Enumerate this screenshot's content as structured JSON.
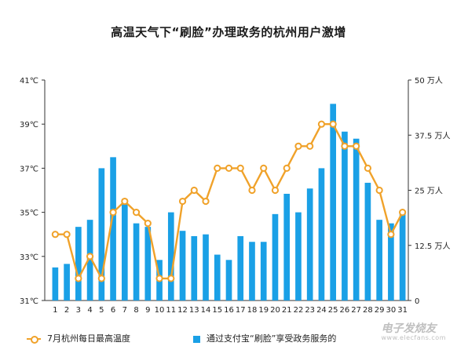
{
  "chart_data": {
    "type": "bar+line",
    "title": "高温天气下“刷脸”办理政务的杭州用户激增",
    "categories": [
      "1",
      "2",
      "3",
      "4",
      "5",
      "6",
      "7",
      "8",
      "9",
      "10",
      "11",
      "12",
      "13",
      "14",
      "15",
      "16",
      "17",
      "18",
      "19",
      "20",
      "21",
      "22",
      "23",
      "24",
      "25",
      "26",
      "27",
      "28",
      "29",
      "30",
      "31"
    ],
    "left_axis": {
      "ticks": [
        31,
        33,
        35,
        37,
        39,
        41
      ],
      "tick_labels": [
        "31℃",
        "33℃",
        "35℃",
        "37℃",
        "39℃",
        "41℃"
      ],
      "range": [
        31,
        41
      ]
    },
    "right_axis": {
      "ticks": [
        0,
        12.5,
        25,
        37.5,
        50
      ],
      "tick_labels": [
        "0",
        "12.5 万人",
        "25 万人",
        "37.5 万人",
        "50 万人"
      ],
      "range": [
        0,
        50
      ]
    },
    "series": [
      {
        "name": "通过支付宝“刷脸”享受政务服务的",
        "type": "bar",
        "axis": "right",
        "color": "#1aa0e6",
        "values": [
          7.5,
          8.3,
          16.7,
          18.3,
          30,
          32.5,
          22.5,
          17.5,
          16.7,
          9.2,
          20,
          15.8,
          14.6,
          15,
          10.4,
          9.2,
          14.6,
          13.3,
          13.3,
          19.6,
          24.2,
          20,
          25.4,
          30,
          44.6,
          38.3,
          36.7,
          26.7,
          18.3,
          17.5,
          20
        ]
      },
      {
        "name": "7月杭州每日最高温度",
        "type": "line",
        "axis": "left",
        "color": "#f0a22a",
        "values": [
          34.0,
          34.0,
          32.0,
          33.0,
          32.0,
          35.0,
          35.5,
          35.0,
          34.5,
          32.0,
          32.0,
          35.5,
          36.0,
          35.5,
          37.0,
          37.0,
          37.0,
          36.0,
          37.0,
          36.0,
          37.0,
          38.0,
          38.0,
          39.0,
          39.0,
          38.0,
          38.0,
          37.0,
          36.0,
          34.0,
          35.0
        ]
      }
    ],
    "legend": {
      "position": "bottom",
      "line_label": "7月杭州每日最高温度",
      "bar_label": "通过支付宝“刷脸”享受政务服务的"
    }
  },
  "watermark": {
    "main": "电子发烧友",
    "sub": "www.elecfans.com"
  }
}
